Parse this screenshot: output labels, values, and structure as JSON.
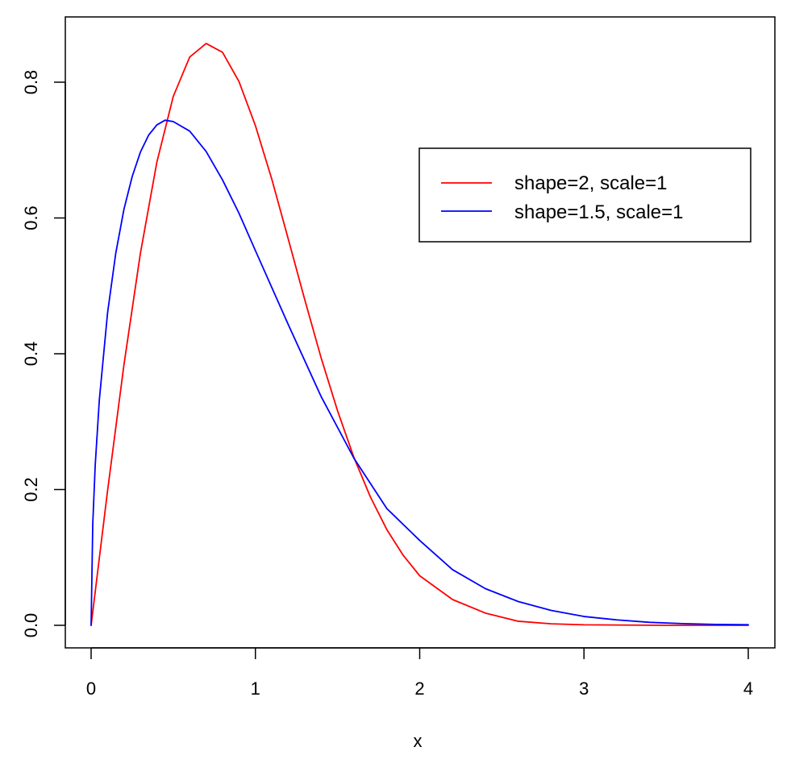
{
  "chart_data": {
    "type": "line",
    "title": "",
    "xlabel": "x",
    "ylabel": "",
    "xlim": [
      0,
      4
    ],
    "ylim": [
      0,
      0.86
    ],
    "grid": false,
    "legend_position": "top-right",
    "x_ticks": [
      {
        "value": 0,
        "label": "0"
      },
      {
        "value": 1,
        "label": "1"
      },
      {
        "value": 2,
        "label": "2"
      },
      {
        "value": 3,
        "label": "3"
      },
      {
        "value": 4,
        "label": "4"
      }
    ],
    "y_ticks": [
      {
        "value": 0,
        "label": "0.0"
      },
      {
        "value": 0.2,
        "label": "0.2"
      },
      {
        "value": 0.4,
        "label": "0.4"
      },
      {
        "value": 0.6,
        "label": "0.6"
      },
      {
        "value": 0.8,
        "label": "0.8"
      }
    ],
    "series": [
      {
        "name": "shape=2, scale=1",
        "color": "#ff0000",
        "points": [
          [
            0,
            0
          ],
          [
            0.1,
            0.198
          ],
          [
            0.2,
            0.384
          ],
          [
            0.3,
            0.548
          ],
          [
            0.4,
            0.682
          ],
          [
            0.5,
            0.779
          ],
          [
            0.6,
            0.837
          ],
          [
            0.7,
            0.857
          ],
          [
            0.8,
            0.844
          ],
          [
            0.9,
            0.801
          ],
          [
            1.0,
            0.736
          ],
          [
            1.1,
            0.657
          ],
          [
            1.2,
            0.569
          ],
          [
            1.3,
            0.48
          ],
          [
            1.4,
            0.394
          ],
          [
            1.5,
            0.316
          ],
          [
            1.6,
            0.247
          ],
          [
            1.7,
            0.189
          ],
          [
            1.8,
            0.141
          ],
          [
            1.9,
            0.103
          ],
          [
            2.0,
            0.073
          ],
          [
            2.2,
            0.038
          ],
          [
            2.4,
            0.018
          ],
          [
            2.6,
            0.006
          ],
          [
            2.8,
            0.0022
          ],
          [
            3.0,
            0.0007
          ],
          [
            3.5,
            3e-05
          ],
          [
            4.0,
            0
          ]
        ]
      },
      {
        "name": "shape=1.5, scale=1",
        "color": "#0000ff",
        "points": [
          [
            0,
            0
          ],
          [
            0.01,
            0.149
          ],
          [
            0.025,
            0.236
          ],
          [
            0.05,
            0.332
          ],
          [
            0.1,
            0.46
          ],
          [
            0.15,
            0.548
          ],
          [
            0.2,
            0.613
          ],
          [
            0.25,
            0.661
          ],
          [
            0.3,
            0.697
          ],
          [
            0.35,
            0.722
          ],
          [
            0.4,
            0.737
          ],
          [
            0.45,
            0.744
          ],
          [
            0.5,
            0.742
          ],
          [
            0.6,
            0.728
          ],
          [
            0.7,
            0.698
          ],
          [
            0.8,
            0.656
          ],
          [
            0.9,
            0.607
          ],
          [
            1.0,
            0.552
          ],
          [
            1.2,
            0.443
          ],
          [
            1.4,
            0.337
          ],
          [
            1.6,
            0.246
          ],
          [
            1.8,
            0.172
          ],
          [
            2.0,
            0.125
          ],
          [
            2.2,
            0.082
          ],
          [
            2.4,
            0.054
          ],
          [
            2.6,
            0.035
          ],
          [
            2.8,
            0.022
          ],
          [
            3.0,
            0.013
          ],
          [
            3.2,
            0.008
          ],
          [
            3.4,
            0.0044
          ],
          [
            3.6,
            0.0025
          ],
          [
            3.8,
            0.0013
          ],
          [
            4.0,
            0.0008
          ]
        ]
      }
    ]
  }
}
